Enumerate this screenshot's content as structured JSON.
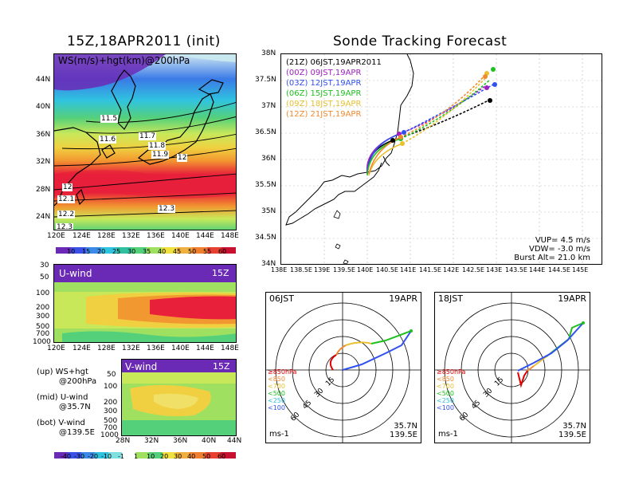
{
  "left": {
    "title": "15Z,18APR2011 (init)",
    "map": {
      "label": "WS(m/s)+hgt(km)@200hPa",
      "lat_ticks": [
        "44N",
        "40N",
        "36N",
        "32N",
        "28N",
        "24N"
      ],
      "lon_ticks": [
        "120E",
        "124E",
        "128E",
        "132E",
        "136E",
        "140E",
        "144E",
        "148E"
      ],
      "contour_labels": [
        "11.5",
        "11.6",
        "11.7",
        "11.8",
        "11.9",
        "12",
        "12",
        "12.1",
        "12.2",
        "12.3",
        "12.3"
      ]
    },
    "ws_colorbar": [
      "10",
      "15",
      "20",
      "25",
      "30",
      "35",
      "40",
      "45",
      "50",
      "55",
      "60"
    ],
    "u_panel": {
      "label": "U-wind",
      "time": "15Z",
      "p_ticks": [
        "30",
        "50",
        "100",
        "200",
        "300",
        "500",
        "700",
        "1000"
      ],
      "lon_ticks": [
        "120E",
        "124E",
        "128E",
        "132E",
        "136E",
        "140E",
        "144E",
        "148E"
      ]
    },
    "v_panel": {
      "label": "V-wind",
      "time": "15Z",
      "p_ticks": [
        "50",
        "100",
        "200",
        "300",
        "500",
        "700",
        "1000"
      ],
      "lat_ticks": [
        "28N",
        "32N",
        "36N",
        "40N",
        "44N"
      ]
    },
    "notes": [
      {
        "a": "(up) WS+hgt",
        "b": "@200hPa"
      },
      {
        "a": "(mid) U-wind",
        "b": "@35.7N"
      },
      {
        "a": "(bot) V-wind",
        "b": "@139.5E"
      }
    ],
    "uv_colorbar": [
      "-40",
      "-30",
      "-20",
      "-10",
      "-1",
      "1",
      "10",
      "20",
      "30",
      "40",
      "50",
      "60"
    ]
  },
  "right": {
    "title": "Sonde Tracking Forecast",
    "track_map": {
      "lat_ticks": [
        "38N",
        "37.5N",
        "37N",
        "36.5N",
        "36N",
        "35.5N",
        "35N",
        "34.5N",
        "34N"
      ],
      "lon_ticks": [
        "138E",
        "138.5E",
        "139E",
        "139.5E",
        "140E",
        "140.5E",
        "141E",
        "141.5E",
        "142E",
        "142.5E",
        "143E",
        "143.5E",
        "144E",
        "144.5E",
        "145E"
      ],
      "legend": [
        {
          "text": "(21Z)  06JST,19APR2011",
          "color": "#000000"
        },
        {
          "text": "(00Z)  09JST,19APR",
          "color": "#a020c0"
        },
        {
          "text": "(03Z)  12JST,19APR",
          "color": "#3050f0"
        },
        {
          "text": "(06Z)  15JST,19APR",
          "color": "#20c020"
        },
        {
          "text": "(09Z)  18JST,19APR",
          "color": "#e8c030"
        },
        {
          "text": "(12Z)  21JST,19APR",
          "color": "#f08a30"
        }
      ],
      "params": [
        "VUP= 4.5 m/s",
        "VDW= -3.0 m/s",
        "Burst Alt= 21.0 km"
      ]
    },
    "hodo_left": {
      "time": "06JST",
      "date": "19APR",
      "legend": [
        "≥850hPa",
        "<850",
        "<700",
        "<500",
        "<250",
        "<100"
      ],
      "legend_colors": [
        "#e00000",
        "#f08a30",
        "#e8c030",
        "#20c020",
        "#30c0e0",
        "#3050f0"
      ],
      "rings": [
        "15",
        "30",
        "45",
        "60"
      ],
      "unit": "ms-1",
      "loc_lat": "35.7N",
      "loc_lon": "139.5E"
    },
    "hodo_right": {
      "time": "18JST",
      "date": "19APR",
      "legend": [
        "≥850hPa",
        "<850",
        "<700",
        "<500",
        "<250",
        "<100"
      ],
      "legend_colors": [
        "#e00000",
        "#f08a30",
        "#e8c030",
        "#20c020",
        "#30c0e0",
        "#3050f0"
      ],
      "rings": [
        "15",
        "30",
        "45",
        "60"
      ],
      "unit": "ms-1",
      "loc_lat": "35.7N",
      "loc_lon": "139.5E"
    }
  }
}
